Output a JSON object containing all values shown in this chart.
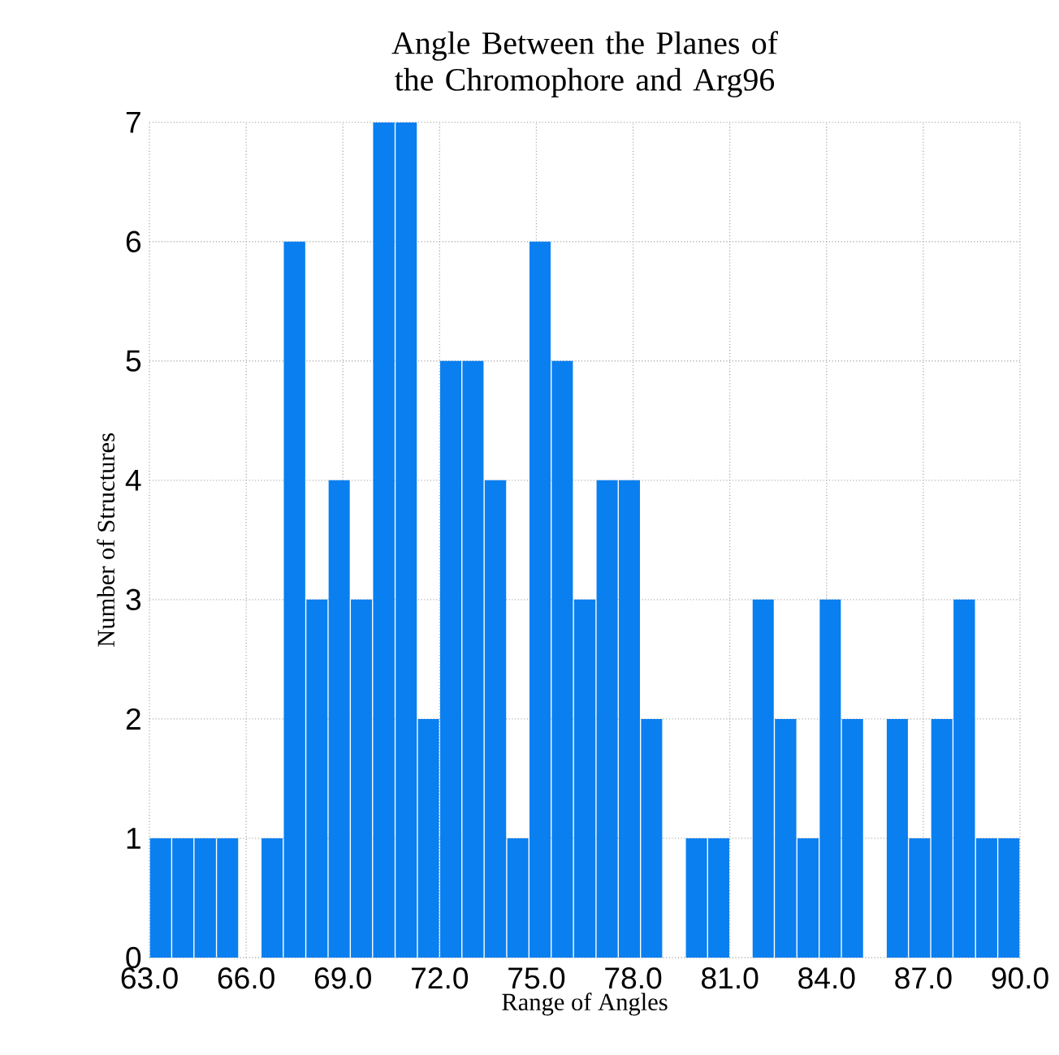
{
  "chart_data": {
    "type": "histogram",
    "title": "Angle Between the Planes of the Chromophore and Arg96",
    "xlabel": "Range of Angles",
    "ylabel": "Number of Structures",
    "bins": [
      63.0,
      63.69,
      64.38,
      65.08,
      65.77,
      66.46,
      67.15,
      67.85,
      68.54,
      69.23,
      69.92,
      70.62,
      71.31,
      72.0,
      72.69,
      73.38,
      74.08,
      74.77,
      75.46,
      76.15,
      76.85,
      77.54,
      78.23,
      78.92,
      79.62,
      80.31,
      81.0,
      81.69,
      82.38,
      83.08,
      83.77,
      84.46,
      85.15,
      85.85,
      86.54,
      87.23,
      87.92,
      88.62,
      89.31,
      90.0
    ],
    "values": [
      1,
      1,
      1,
      1,
      0,
      1,
      6,
      3,
      4,
      3,
      7,
      7,
      2,
      5,
      5,
      4,
      1,
      6,
      5,
      3,
      4,
      4,
      2,
      0,
      1,
      1,
      0,
      3,
      2,
      1,
      3,
      2,
      0,
      2,
      1,
      2,
      3,
      1,
      1
    ],
    "color": "#0a7ff0",
    "xlim": [
      63,
      90
    ],
    "xticks": [
      {
        "value": 63,
        "label": "63.0"
      },
      {
        "value": 66,
        "label": "66.0"
      },
      {
        "value": 69,
        "label": "69.0"
      },
      {
        "value": 72,
        "label": "72.0"
      },
      {
        "value": 75,
        "label": "75.0"
      },
      {
        "value": 78,
        "label": "78.0"
      },
      {
        "value": 81,
        "label": "81.0"
      },
      {
        "value": 84,
        "label": "84.0"
      },
      {
        "value": 87,
        "label": "87.0"
      },
      {
        "value": 90,
        "label": "90.0"
      }
    ],
    "ylim": [
      0,
      7
    ],
    "yticks": [
      0,
      1,
      2,
      3,
      4,
      5,
      6,
      7
    ],
    "grid": true
  }
}
